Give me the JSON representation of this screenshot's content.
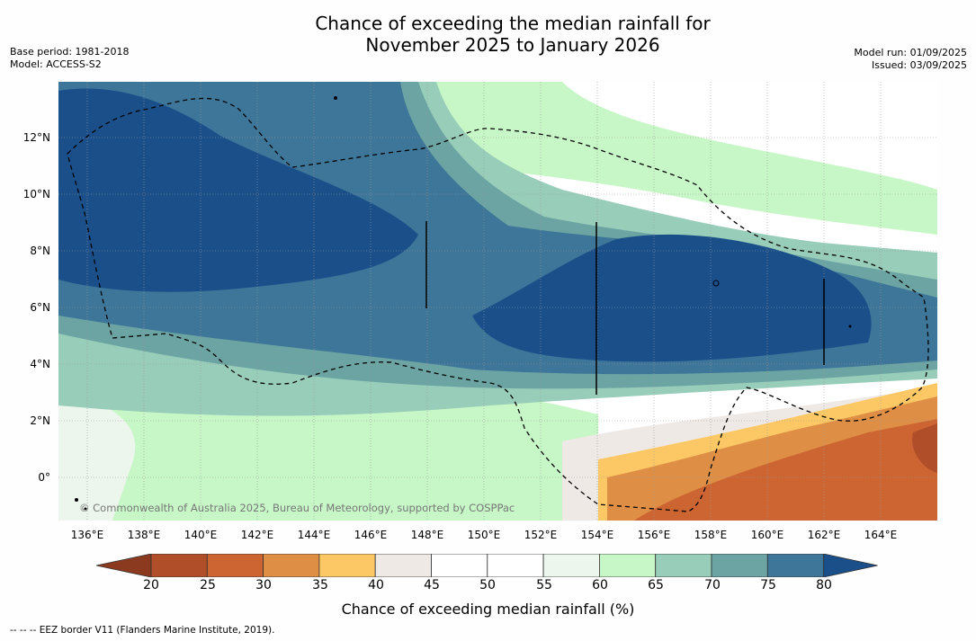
{
  "title": {
    "line1": "Chance of exceeding the median rainfall for",
    "line2": "November 2025 to January 2026"
  },
  "meta_left": {
    "base_period": "Base period: 1981-2018",
    "model": "Model: ACCESS-S2"
  },
  "meta_right": {
    "model_run": "Model run: 01/09/2025",
    "issued": "Issued: 03/09/2025"
  },
  "map": {
    "copyright": "© Commonwealth of Australia 2025, Bureau of Meteorology, supported by COSPPac",
    "lon_labels": [
      "136°E",
      "138°E",
      "140°E",
      "142°E",
      "144°E",
      "146°E",
      "148°E",
      "150°E",
      "152°E",
      "154°E",
      "156°E",
      "158°E",
      "160°E",
      "162°E",
      "164°E"
    ],
    "lat_labels": [
      "12°N",
      "10°N",
      "8°N",
      "6°N",
      "4°N",
      "2°N",
      "0°"
    ],
    "lon_range": [
      135,
      166
    ],
    "lat_range": [
      -1.5,
      14
    ]
  },
  "colorbar": {
    "ticks": [
      "20",
      "25",
      "30",
      "35",
      "40",
      "45",
      "50",
      "55",
      "60",
      "65",
      "70",
      "75",
      "80"
    ],
    "colors": [
      "#8b3a1f",
      "#b04e2a",
      "#cd6532",
      "#de8f45",
      "#fcc865",
      "#efe9e6",
      "#ffffff",
      "#ffffff",
      "#ecf6ec",
      "#c7f7c7",
      "#98cdb9",
      "#6ba4a3",
      "#3e7699",
      "#1a4f8a"
    ],
    "title": "Chance of exceeding median rainfall (%)"
  },
  "footer": "--  --  -- EEZ border V11 (Flanders Marine Institute, 2019)."
}
